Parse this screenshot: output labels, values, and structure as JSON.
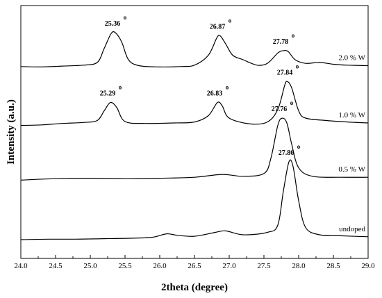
{
  "chart_data": {
    "type": "line",
    "title": "",
    "xlabel": "2theta (degree)",
    "ylabel": "Intensity (a.u.)",
    "xlim": [
      24.0,
      29.0
    ],
    "x_ticks": [
      "24.0",
      "24.5",
      "25.0",
      "25.5",
      "26.0",
      "26.5",
      "27.0",
      "27.5",
      "28.0",
      "28.5",
      "29.0"
    ],
    "y_ticks_labeled": false,
    "grid": false,
    "peak_marker_symbol": "o",
    "series": [
      {
        "name": "2.0 % W",
        "points": [
          [
            24.0,
            0.05
          ],
          [
            24.3,
            0.04
          ],
          [
            24.6,
            0.06
          ],
          [
            24.9,
            0.08
          ],
          [
            25.1,
            0.14
          ],
          [
            25.2,
            0.45
          ],
          [
            25.3,
            0.78
          ],
          [
            25.36,
            0.8
          ],
          [
            25.45,
            0.6
          ],
          [
            25.55,
            0.2
          ],
          [
            25.7,
            0.07
          ],
          [
            26.0,
            0.04
          ],
          [
            26.3,
            0.05
          ],
          [
            26.5,
            0.08
          ],
          [
            26.7,
            0.3
          ],
          [
            26.82,
            0.68
          ],
          [
            26.87,
            0.73
          ],
          [
            26.95,
            0.55
          ],
          [
            27.05,
            0.3
          ],
          [
            27.2,
            0.2
          ],
          [
            27.4,
            0.08
          ],
          [
            27.55,
            0.12
          ],
          [
            27.7,
            0.35
          ],
          [
            27.78,
            0.4
          ],
          [
            27.85,
            0.38
          ],
          [
            27.95,
            0.2
          ],
          [
            28.1,
            0.12
          ],
          [
            28.3,
            0.14
          ],
          [
            28.5,
            0.1
          ],
          [
            28.7,
            0.08
          ],
          [
            29.0,
            0.07
          ]
        ]
      },
      {
        "name": "1.0 % W",
        "points": [
          [
            24.0,
            0.05
          ],
          [
            24.3,
            0.06
          ],
          [
            24.6,
            0.09
          ],
          [
            24.9,
            0.11
          ],
          [
            25.1,
            0.15
          ],
          [
            25.2,
            0.35
          ],
          [
            25.29,
            0.52
          ],
          [
            25.38,
            0.42
          ],
          [
            25.5,
            0.13
          ],
          [
            25.8,
            0.09
          ],
          [
            26.2,
            0.1
          ],
          [
            26.5,
            0.12
          ],
          [
            26.7,
            0.25
          ],
          [
            26.83,
            0.52
          ],
          [
            26.9,
            0.45
          ],
          [
            27.0,
            0.2
          ],
          [
            27.3,
            0.08
          ],
          [
            27.55,
            0.12
          ],
          [
            27.7,
            0.38
          ],
          [
            27.8,
            0.88
          ],
          [
            27.84,
            0.95
          ],
          [
            27.9,
            0.82
          ],
          [
            28.0,
            0.35
          ],
          [
            28.1,
            0.2
          ],
          [
            28.4,
            0.15
          ],
          [
            28.7,
            0.12
          ],
          [
            29.0,
            0.1
          ]
        ]
      },
      {
        "name": "0.5 % W",
        "points": [
          [
            24.0,
            0.04
          ],
          [
            24.5,
            0.07
          ],
          [
            25.0,
            0.08
          ],
          [
            25.5,
            0.07
          ],
          [
            26.0,
            0.08
          ],
          [
            26.5,
            0.1
          ],
          [
            26.9,
            0.16
          ],
          [
            27.2,
            0.12
          ],
          [
            27.5,
            0.18
          ],
          [
            27.6,
            0.5
          ],
          [
            27.7,
            1.2
          ],
          [
            27.76,
            1.35
          ],
          [
            27.83,
            1.25
          ],
          [
            27.9,
            0.8
          ],
          [
            28.0,
            0.3
          ],
          [
            28.2,
            0.12
          ],
          [
            28.6,
            0.1
          ],
          [
            29.0,
            0.1
          ]
        ]
      },
      {
        "name": "undoped",
        "points": [
          [
            24.0,
            0.0
          ],
          [
            24.4,
            0.01
          ],
          [
            24.8,
            0.01
          ],
          [
            25.2,
            0.02
          ],
          [
            25.6,
            0.03
          ],
          [
            25.9,
            0.05
          ],
          [
            26.1,
            0.12
          ],
          [
            26.25,
            0.09
          ],
          [
            26.5,
            0.07
          ],
          [
            26.8,
            0.15
          ],
          [
            26.95,
            0.18
          ],
          [
            27.2,
            0.1
          ],
          [
            27.55,
            0.15
          ],
          [
            27.7,
            0.3
          ],
          [
            27.78,
            1.0
          ],
          [
            27.86,
            1.6
          ],
          [
            27.92,
            1.5
          ],
          [
            28.0,
            0.8
          ],
          [
            28.1,
            0.25
          ],
          [
            28.3,
            0.1
          ],
          [
            28.6,
            0.08
          ],
          [
            29.0,
            0.06
          ]
        ]
      }
    ],
    "peak_labels": [
      {
        "series": 0,
        "x": 25.36,
        "text": "25.36"
      },
      {
        "series": 0,
        "x": 26.87,
        "text": "26.87"
      },
      {
        "series": 0,
        "x": 27.78,
        "text": "27.78"
      },
      {
        "series": 1,
        "x": 25.29,
        "text": "25.29"
      },
      {
        "series": 1,
        "x": 26.83,
        "text": "26.83"
      },
      {
        "series": 1,
        "x": 27.84,
        "text": "27.84"
      },
      {
        "series": 2,
        "x": 27.76,
        "text": "27.76"
      },
      {
        "series": 3,
        "x": 27.86,
        "text": "27.86"
      }
    ]
  }
}
